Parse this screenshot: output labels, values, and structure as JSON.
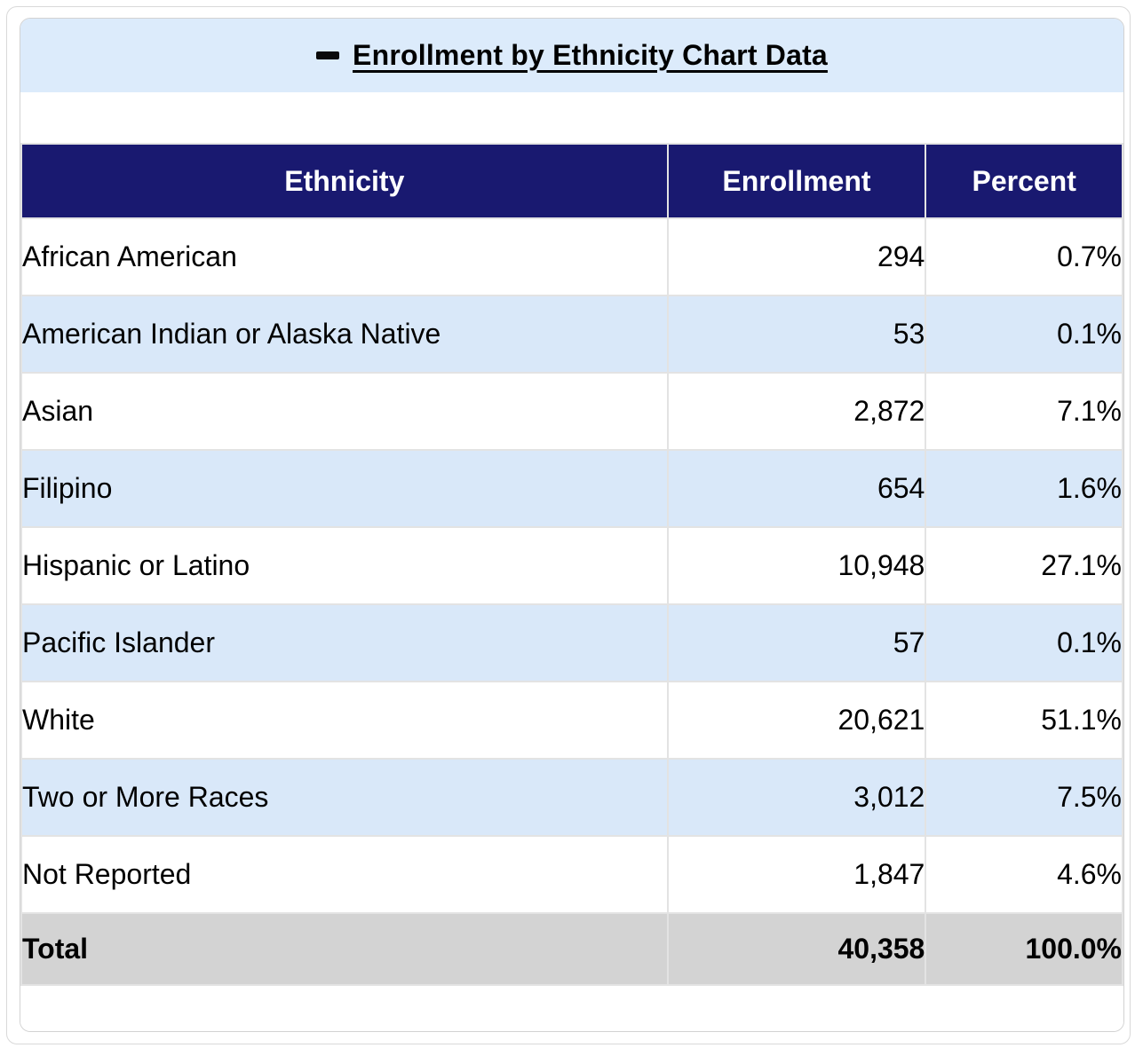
{
  "section": {
    "title": "Enrollment by Ethnicity Chart Data",
    "collapse_icon": "minus-icon",
    "collapsed": false
  },
  "table": {
    "columns": [
      "Ethnicity",
      "Enrollment",
      "Percent"
    ],
    "rows": [
      {
        "ethnicity": "African American",
        "enrollment": "294",
        "percent": "0.7%"
      },
      {
        "ethnicity": "American Indian or Alaska Native",
        "enrollment": "53",
        "percent": "0.1%"
      },
      {
        "ethnicity": "Asian",
        "enrollment": "2,872",
        "percent": "7.1%"
      },
      {
        "ethnicity": "Filipino",
        "enrollment": "654",
        "percent": "1.6%"
      },
      {
        "ethnicity": "Hispanic or Latino",
        "enrollment": "10,948",
        "percent": "27.1%"
      },
      {
        "ethnicity": "Pacific Islander",
        "enrollment": "57",
        "percent": "0.1%"
      },
      {
        "ethnicity": "White",
        "enrollment": "20,621",
        "percent": "51.1%"
      },
      {
        "ethnicity": "Two or More Races",
        "enrollment": "3,012",
        "percent": "7.5%"
      },
      {
        "ethnicity": "Not Reported",
        "enrollment": "1,847",
        "percent": "4.6%"
      }
    ],
    "total": {
      "ethnicity": "Total",
      "enrollment": "40,358",
      "percent": "100.0%"
    }
  },
  "colors": {
    "header_background": "#191970",
    "header_text": "#ffffff",
    "stripe_row_background": "#d9e8f9",
    "title_band_background": "#dcebfb",
    "total_row_background": "#d3d3d3",
    "gridline": "#e3e3e3"
  }
}
